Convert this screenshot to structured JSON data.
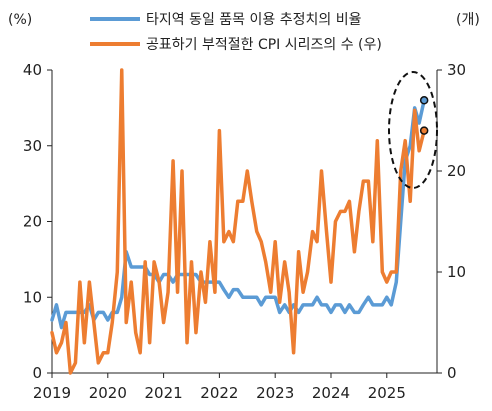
{
  "chart_data": {
    "type": "line",
    "left_unit": "(%)",
    "right_unit": "(개)",
    "left_axis": {
      "min": 0,
      "max": 40,
      "ticks": [
        0,
        10,
        20,
        30,
        40
      ]
    },
    "right_axis": {
      "min": 0,
      "max": 30,
      "ticks": [
        0,
        10,
        20,
        30
      ]
    },
    "x_axis": {
      "min": 2019.0,
      "max": 2025.9,
      "labels": [
        "2019",
        "2020",
        "2021",
        "2022",
        "2023",
        "2024",
        "2025"
      ]
    },
    "series": [
      {
        "name": "타지역 동일 품목 이용 추정치의 비율",
        "axis": "left",
        "color": "#5b9bd5",
        "points": [
          [
            2019.0,
            7
          ],
          [
            2019.08,
            9
          ],
          [
            2019.17,
            6
          ],
          [
            2019.25,
            8
          ],
          [
            2019.33,
            8
          ],
          [
            2019.42,
            8
          ],
          [
            2019.5,
            8
          ],
          [
            2019.58,
            8
          ],
          [
            2019.67,
            9
          ],
          [
            2019.75,
            7
          ],
          [
            2019.83,
            8
          ],
          [
            2019.92,
            8
          ],
          [
            2020.0,
            7
          ],
          [
            2020.08,
            8
          ],
          [
            2020.17,
            8
          ],
          [
            2020.25,
            10
          ],
          [
            2020.33,
            16
          ],
          [
            2020.42,
            14
          ],
          [
            2020.5,
            14
          ],
          [
            2020.58,
            14
          ],
          [
            2020.67,
            14
          ],
          [
            2020.75,
            13
          ],
          [
            2020.83,
            13
          ],
          [
            2020.92,
            12
          ],
          [
            2021.0,
            13
          ],
          [
            2021.08,
            13
          ],
          [
            2021.17,
            12
          ],
          [
            2021.25,
            13
          ],
          [
            2021.33,
            13
          ],
          [
            2021.42,
            13
          ],
          [
            2021.5,
            13
          ],
          [
            2021.58,
            13
          ],
          [
            2021.67,
            12
          ],
          [
            2021.75,
            12
          ],
          [
            2021.83,
            12
          ],
          [
            2021.92,
            12
          ],
          [
            2022.0,
            12
          ],
          [
            2022.08,
            11
          ],
          [
            2022.17,
            10
          ],
          [
            2022.25,
            11
          ],
          [
            2022.33,
            11
          ],
          [
            2022.42,
            10
          ],
          [
            2022.5,
            10
          ],
          [
            2022.58,
            10
          ],
          [
            2022.67,
            10
          ],
          [
            2022.75,
            9
          ],
          [
            2022.83,
            10
          ],
          [
            2022.92,
            10
          ],
          [
            2023.0,
            10
          ],
          [
            2023.08,
            8
          ],
          [
            2023.17,
            9
          ],
          [
            2023.25,
            8
          ],
          [
            2023.33,
            9
          ],
          [
            2023.42,
            8
          ],
          [
            2023.5,
            9
          ],
          [
            2023.58,
            9
          ],
          [
            2023.67,
            9
          ],
          [
            2023.75,
            10
          ],
          [
            2023.83,
            9
          ],
          [
            2023.92,
            9
          ],
          [
            2024.0,
            8
          ],
          [
            2024.08,
            9
          ],
          [
            2024.17,
            9
          ],
          [
            2024.25,
            8
          ],
          [
            2024.33,
            9
          ],
          [
            2024.42,
            8
          ],
          [
            2024.5,
            8
          ],
          [
            2024.58,
            9
          ],
          [
            2024.67,
            10
          ],
          [
            2024.75,
            9
          ],
          [
            2024.83,
            9
          ],
          [
            2024.92,
            9
          ],
          [
            2025.0,
            10
          ],
          [
            2025.08,
            9
          ],
          [
            2025.17,
            12
          ],
          [
            2025.25,
            20
          ],
          [
            2025.33,
            28
          ],
          [
            2025.42,
            30
          ],
          [
            2025.5,
            35
          ],
          [
            2025.58,
            33
          ],
          [
            2025.67,
            36
          ]
        ],
        "end_marker": true
      },
      {
        "name": "공표하기 부적절한 CPI 시리즈의 수 (우)",
        "axis": "right",
        "color": "#ed7d31",
        "points": [
          [
            2019.0,
            4
          ],
          [
            2019.08,
            2
          ],
          [
            2019.17,
            3
          ],
          [
            2019.25,
            5
          ],
          [
            2019.33,
            0
          ],
          [
            2019.42,
            1
          ],
          [
            2019.5,
            9
          ],
          [
            2019.58,
            3
          ],
          [
            2019.67,
            9
          ],
          [
            2019.75,
            5
          ],
          [
            2019.83,
            1
          ],
          [
            2019.92,
            2
          ],
          [
            2020.0,
            2
          ],
          [
            2020.08,
            5
          ],
          [
            2020.17,
            10
          ],
          [
            2020.25,
            30
          ],
          [
            2020.33,
            5
          ],
          [
            2020.42,
            9
          ],
          [
            2020.5,
            4
          ],
          [
            2020.58,
            2
          ],
          [
            2020.67,
            11
          ],
          [
            2020.75,
            3
          ],
          [
            2020.83,
            11
          ],
          [
            2020.92,
            9
          ],
          [
            2021.0,
            5
          ],
          [
            2021.08,
            8
          ],
          [
            2021.17,
            21
          ],
          [
            2021.25,
            8
          ],
          [
            2021.33,
            20
          ],
          [
            2021.42,
            3
          ],
          [
            2021.5,
            11
          ],
          [
            2021.58,
            4
          ],
          [
            2021.67,
            10
          ],
          [
            2021.75,
            7
          ],
          [
            2021.83,
            13
          ],
          [
            2021.92,
            8
          ],
          [
            2022.0,
            24
          ],
          [
            2022.08,
            13
          ],
          [
            2022.17,
            14
          ],
          [
            2022.25,
            13
          ],
          [
            2022.33,
            17
          ],
          [
            2022.42,
            17
          ],
          [
            2022.5,
            20
          ],
          [
            2022.58,
            17
          ],
          [
            2022.67,
            14
          ],
          [
            2022.75,
            13
          ],
          [
            2022.83,
            11
          ],
          [
            2022.92,
            8
          ],
          [
            2023.0,
            13
          ],
          [
            2023.08,
            7
          ],
          [
            2023.17,
            11
          ],
          [
            2023.25,
            8
          ],
          [
            2023.33,
            2
          ],
          [
            2023.42,
            12
          ],
          [
            2023.5,
            8
          ],
          [
            2023.58,
            10
          ],
          [
            2023.67,
            14
          ],
          [
            2023.75,
            13
          ],
          [
            2023.83,
            20
          ],
          [
            2023.92,
            14
          ],
          [
            2024.0,
            9
          ],
          [
            2024.08,
            15
          ],
          [
            2024.17,
            16
          ],
          [
            2024.25,
            16
          ],
          [
            2024.33,
            17
          ],
          [
            2024.42,
            12
          ],
          [
            2024.5,
            16
          ],
          [
            2024.58,
            19
          ],
          [
            2024.67,
            19
          ],
          [
            2024.75,
            13
          ],
          [
            2024.83,
            23
          ],
          [
            2024.92,
            10
          ],
          [
            2025.0,
            9
          ],
          [
            2025.08,
            10
          ],
          [
            2025.17,
            10
          ],
          [
            2025.25,
            20
          ],
          [
            2025.33,
            23
          ],
          [
            2025.42,
            17
          ],
          [
            2025.5,
            26
          ],
          [
            2025.58,
            22
          ],
          [
            2025.67,
            24
          ]
        ],
        "end_marker": true
      }
    ],
    "highlight": "dashed ellipse around latest observations (2025)",
    "legend_position": "top"
  }
}
